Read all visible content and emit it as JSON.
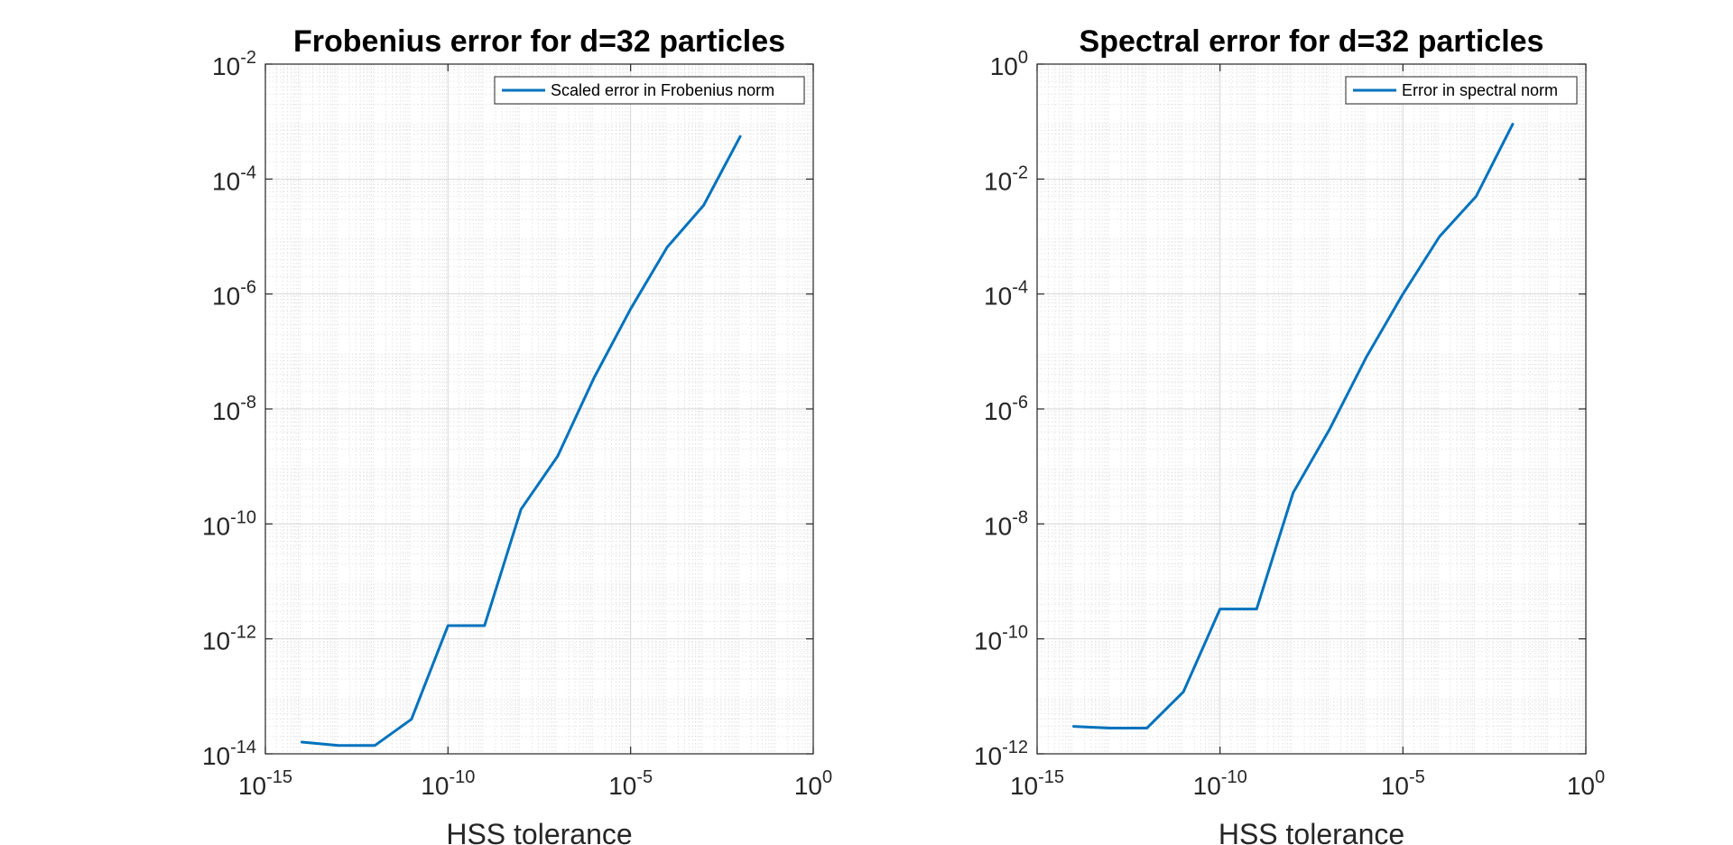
{
  "chart_data": [
    {
      "type": "line",
      "title": "Frobenius error for d=32 particles",
      "xlabel": "HSS tolerance",
      "ylabel": "",
      "xscale": "log",
      "yscale": "log",
      "xlim": [
        1e-15,
        1
      ],
      "ylim": [
        1e-14,
        0.01
      ],
      "xticks": [
        1e-15,
        1e-10,
        1e-05,
        1
      ],
      "xtick_labels": [
        {
          "base": "10",
          "exp": "-15"
        },
        {
          "base": "10",
          "exp": "-10"
        },
        {
          "base": "10",
          "exp": "-5"
        },
        {
          "base": "10",
          "exp": "0"
        }
      ],
      "yticks": [
        1e-14,
        1e-12,
        1e-10,
        1e-08,
        1e-06,
        0.0001,
        0.01
      ],
      "ytick_labels": [
        {
          "base": "10",
          "exp": "-14"
        },
        {
          "base": "10",
          "exp": "-12"
        },
        {
          "base": "10",
          "exp": "-10"
        },
        {
          "base": "10",
          "exp": "-8"
        },
        {
          "base": "10",
          "exp": "-6"
        },
        {
          "base": "10",
          "exp": "-4"
        },
        {
          "base": "10",
          "exp": "-2"
        }
      ],
      "grid": true,
      "minor_grid": true,
      "legend_position": "top-right",
      "series": [
        {
          "name": "Scaled error in Frobenius norm",
          "color": "#0072BD",
          "x": [
            1e-14,
            1e-13,
            1e-12,
            1e-11,
            1e-10,
            1e-09,
            1e-08,
            1e-07,
            1e-06,
            1e-05,
            0.0001,
            0.001,
            0.01
          ],
          "y": [
            1.6e-14,
            1.4e-14,
            1.4e-14,
            4e-14,
            1.7e-12,
            1.7e-12,
            1.8e-10,
            1.5e-09,
            3.5e-08,
            5.5e-07,
            6.5e-06,
            3.5e-05,
            0.00055
          ]
        }
      ]
    },
    {
      "type": "line",
      "title": "Spectral error for d=32 particles",
      "xlabel": "HSS tolerance",
      "ylabel": "",
      "xscale": "log",
      "yscale": "log",
      "xlim": [
        1e-15,
        1
      ],
      "ylim": [
        1e-12,
        1
      ],
      "xticks": [
        1e-15,
        1e-10,
        1e-05,
        1
      ],
      "xtick_labels": [
        {
          "base": "10",
          "exp": "-15"
        },
        {
          "base": "10",
          "exp": "-10"
        },
        {
          "base": "10",
          "exp": "-5"
        },
        {
          "base": "10",
          "exp": "0"
        }
      ],
      "yticks": [
        1e-12,
        1e-10,
        1e-08,
        1e-06,
        0.0001,
        0.01,
        1
      ],
      "ytick_labels": [
        {
          "base": "10",
          "exp": "-12"
        },
        {
          "base": "10",
          "exp": "-10"
        },
        {
          "base": "10",
          "exp": "-8"
        },
        {
          "base": "10",
          "exp": "-6"
        },
        {
          "base": "10",
          "exp": "-4"
        },
        {
          "base": "10",
          "exp": "-2"
        },
        {
          "base": "10",
          "exp": "0"
        }
      ],
      "grid": true,
      "minor_grid": true,
      "legend_position": "top-right",
      "series": [
        {
          "name": "Error in spectral norm",
          "color": "#0072BD",
          "x": [
            1e-14,
            1e-13,
            1e-12,
            1e-11,
            1e-10,
            1e-09,
            1e-08,
            1e-07,
            1e-06,
            1e-05,
            0.0001,
            0.001,
            0.01
          ],
          "y": [
            3e-12,
            2.8e-12,
            2.8e-12,
            1.2e-11,
            3.3e-10,
            3.3e-10,
            3.5e-08,
            4.5e-07,
            8e-06,
            0.0001,
            0.001,
            0.005,
            0.09
          ]
        }
      ]
    }
  ]
}
